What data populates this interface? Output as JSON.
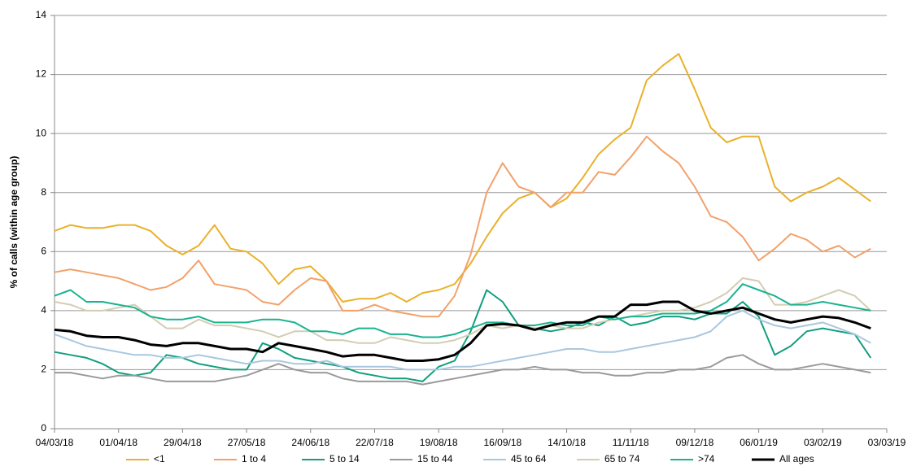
{
  "chart_data": {
    "type": "line",
    "y_label": "% of calls (within age group)",
    "x": [
      "04/03/18",
      "11/03/18",
      "18/03/18",
      "25/03/18",
      "01/04/18",
      "08/04/18",
      "15/04/18",
      "22/04/18",
      "29/04/18",
      "06/05/18",
      "13/05/18",
      "20/05/18",
      "27/05/18",
      "03/06/18",
      "10/06/18",
      "17/06/18",
      "24/06/18",
      "01/07/18",
      "08/07/18",
      "15/07/18",
      "22/07/18",
      "29/07/18",
      "05/08/18",
      "12/08/18",
      "19/08/18",
      "26/08/18",
      "02/09/18",
      "09/09/18",
      "16/09/18",
      "23/09/18",
      "30/09/18",
      "07/10/18",
      "14/10/18",
      "21/10/18",
      "28/10/18",
      "04/11/18",
      "11/11/18",
      "18/11/18",
      "25/11/18",
      "02/12/18",
      "09/12/18",
      "16/12/18",
      "23/12/18",
      "30/12/18",
      "06/01/19",
      "13/01/19",
      "20/01/19",
      "27/01/19",
      "03/02/19",
      "10/02/19",
      "17/02/19",
      "24/02/19",
      "03/03/19"
    ],
    "xticks": [
      "04/03/18",
      "01/04/18",
      "29/04/18",
      "27/05/18",
      "24/06/18",
      "22/07/18",
      "19/08/18",
      "16/09/18",
      "14/10/18",
      "11/11/18",
      "09/12/18",
      "06/01/19",
      "03/02/19",
      "03/03/19"
    ],
    "ylim": [
      0,
      14
    ],
    "yticks": [
      0,
      2,
      4,
      6,
      8,
      10,
      12,
      14
    ],
    "grid": true,
    "legend": "bottom",
    "series": [
      {
        "name": "<1",
        "color": "#e9b12b",
        "values": [
          6.7,
          6.9,
          6.8,
          6.8,
          6.9,
          6.9,
          6.7,
          6.2,
          5.9,
          6.2,
          6.9,
          6.1,
          6.0,
          5.6,
          4.9,
          5.4,
          5.5,
          5.0,
          4.3,
          4.4,
          4.4,
          4.6,
          4.3,
          4.6,
          4.7,
          4.9,
          5.6,
          6.5,
          7.3,
          7.8,
          8.0,
          7.5,
          7.8,
          8.5,
          9.3,
          9.8,
          10.2,
          11.8,
          12.3,
          12.7,
          11.5,
          10.2,
          9.7,
          9.9,
          9.9,
          8.2,
          7.7,
          8.0,
          8.2,
          8.5,
          8.1,
          7.7,
          null
        ]
      },
      {
        "name": "1 to 4",
        "color": "#f2a16b",
        "values": [
          5.3,
          5.4,
          5.3,
          5.2,
          5.1,
          4.9,
          4.7,
          4.8,
          5.1,
          5.7,
          4.9,
          4.8,
          4.7,
          4.3,
          4.2,
          4.7,
          5.1,
          5.0,
          4.0,
          4.0,
          4.2,
          4.0,
          3.9,
          3.8,
          3.8,
          4.5,
          5.9,
          8.0,
          9.0,
          8.2,
          8.0,
          7.5,
          8.0,
          8.0,
          8.7,
          8.6,
          9.2,
          9.9,
          9.4,
          9.0,
          8.2,
          7.2,
          7.0,
          6.5,
          5.7,
          6.1,
          6.6,
          6.4,
          6.0,
          6.2,
          5.8,
          6.1,
          null
        ]
      },
      {
        "name": "5 to 14",
        "color": "#129e7f",
        "values": [
          2.6,
          2.5,
          2.4,
          2.2,
          1.9,
          1.8,
          1.9,
          2.5,
          2.4,
          2.2,
          2.1,
          2.0,
          2.0,
          2.9,
          2.7,
          2.4,
          2.3,
          2.2,
          2.1,
          1.9,
          1.8,
          1.7,
          1.7,
          1.6,
          2.1,
          2.3,
          3.3,
          4.7,
          4.3,
          3.5,
          3.4,
          3.3,
          3.4,
          3.6,
          3.5,
          3.8,
          3.5,
          3.6,
          3.8,
          3.8,
          3.7,
          3.9,
          3.9,
          4.3,
          3.8,
          2.5,
          2.8,
          3.3,
          3.4,
          3.3,
          3.2,
          2.4,
          null
        ]
      },
      {
        "name": "15 to 44",
        "color": "#9a9a9a",
        "values": [
          1.9,
          1.9,
          1.8,
          1.7,
          1.8,
          1.8,
          1.7,
          1.6,
          1.6,
          1.6,
          1.6,
          1.7,
          1.8,
          2.0,
          2.2,
          2.0,
          1.9,
          1.9,
          1.7,
          1.6,
          1.6,
          1.6,
          1.6,
          1.5,
          1.6,
          1.7,
          1.8,
          1.9,
          2.0,
          2.0,
          2.1,
          2.0,
          2.0,
          1.9,
          1.9,
          1.8,
          1.8,
          1.9,
          1.9,
          2.0,
          2.0,
          2.1,
          2.4,
          2.5,
          2.2,
          2.0,
          2.0,
          2.1,
          2.2,
          2.1,
          2.0,
          1.9,
          null
        ]
      },
      {
        "name": "45 to 64",
        "color": "#a9c7e0",
        "values": [
          3.2,
          3.0,
          2.8,
          2.7,
          2.6,
          2.5,
          2.5,
          2.4,
          2.4,
          2.5,
          2.4,
          2.3,
          2.2,
          2.3,
          2.3,
          2.2,
          2.2,
          2.3,
          2.1,
          2.1,
          2.1,
          2.1,
          2.0,
          2.0,
          2.0,
          2.1,
          2.1,
          2.2,
          2.3,
          2.4,
          2.5,
          2.6,
          2.7,
          2.7,
          2.6,
          2.6,
          2.7,
          2.8,
          2.9,
          3.0,
          3.1,
          3.3,
          3.8,
          4.0,
          3.7,
          3.5,
          3.4,
          3.5,
          3.6,
          3.4,
          3.2,
          2.9,
          null
        ]
      },
      {
        "name": "65 to 74",
        "color": "#d3cdb2",
        "values": [
          4.3,
          4.2,
          4.0,
          4.0,
          4.1,
          4.2,
          3.8,
          3.4,
          3.4,
          3.7,
          3.5,
          3.5,
          3.4,
          3.3,
          3.1,
          3.3,
          3.3,
          3.0,
          3.0,
          2.9,
          2.9,
          3.1,
          3.0,
          2.9,
          2.9,
          3.0,
          3.2,
          3.5,
          3.4,
          3.5,
          3.4,
          3.5,
          3.4,
          3.4,
          3.6,
          3.7,
          3.8,
          3.9,
          4.0,
          4.0,
          4.1,
          4.3,
          4.6,
          5.1,
          5.0,
          4.2,
          4.2,
          4.3,
          4.5,
          4.7,
          4.5,
          4.0,
          null
        ]
      },
      {
        "name": ">74",
        "color": "#19b38f",
        "values": [
          4.5,
          4.7,
          4.3,
          4.3,
          4.2,
          4.1,
          3.8,
          3.7,
          3.7,
          3.8,
          3.6,
          3.6,
          3.6,
          3.7,
          3.7,
          3.6,
          3.3,
          3.3,
          3.2,
          3.4,
          3.4,
          3.2,
          3.2,
          3.1,
          3.1,
          3.2,
          3.4,
          3.6,
          3.6,
          3.5,
          3.5,
          3.6,
          3.5,
          3.5,
          3.8,
          3.7,
          3.8,
          3.8,
          3.9,
          3.9,
          3.9,
          4.0,
          4.3,
          4.9,
          4.7,
          4.5,
          4.2,
          4.2,
          4.3,
          4.2,
          4.1,
          4.0,
          null
        ]
      },
      {
        "name": "All ages",
        "color": "#000000",
        "width": 3,
        "values": [
          3.35,
          3.3,
          3.15,
          3.1,
          3.1,
          3.0,
          2.85,
          2.8,
          2.9,
          2.9,
          2.8,
          2.7,
          2.7,
          2.6,
          2.9,
          2.8,
          2.7,
          2.6,
          2.45,
          2.5,
          2.5,
          2.4,
          2.3,
          2.3,
          2.35,
          2.5,
          2.9,
          3.5,
          3.55,
          3.5,
          3.35,
          3.5,
          3.6,
          3.6,
          3.8,
          3.8,
          4.2,
          4.2,
          4.3,
          4.3,
          4.0,
          3.9,
          4.0,
          4.1,
          3.9,
          3.7,
          3.6,
          3.7,
          3.8,
          3.75,
          3.6,
          3.4,
          null
        ]
      }
    ]
  }
}
